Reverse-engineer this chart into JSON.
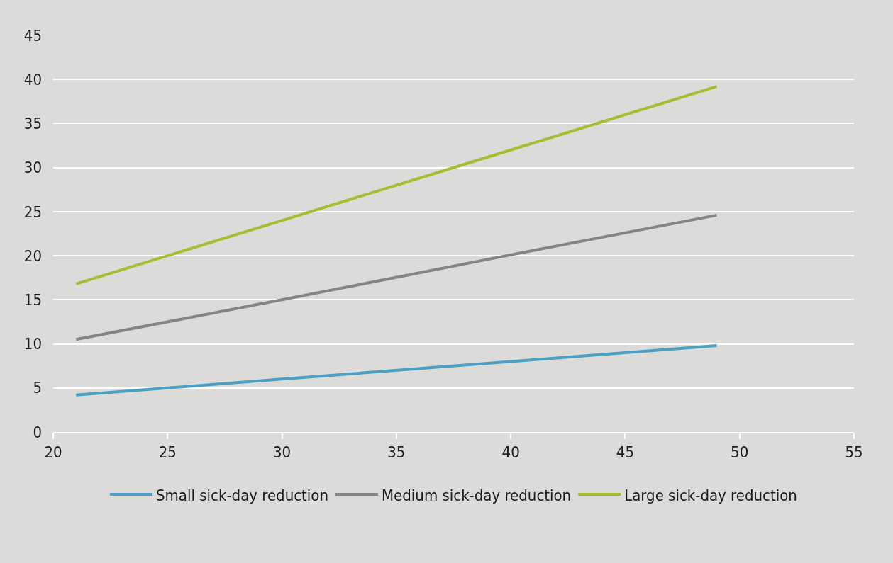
{
  "chart_data": {
    "type": "line",
    "x": [
      21,
      30,
      40,
      49
    ],
    "series": [
      {
        "name": "Small sick-day reduction",
        "color": "#4a9fc4",
        "values": [
          4.2,
          6.0,
          8.0,
          9.8
        ]
      },
      {
        "name": "Medium sick-day reduction",
        "color": "#858388",
        "values": [
          10.5,
          15.0,
          20.1,
          24.6
        ]
      },
      {
        "name": "Large sick-day reduction",
        "color": "#a6bd2f",
        "values": [
          16.8,
          24.0,
          32.0,
          39.2
        ]
      }
    ],
    "xlim": [
      20,
      55
    ],
    "xticks": [
      20,
      25,
      30,
      35,
      40,
      45,
      50,
      55
    ],
    "ylim": [
      0,
      45
    ],
    "yticks": [
      0,
      5,
      10,
      15,
      20,
      25,
      30,
      35,
      40,
      45
    ],
    "grid": "y",
    "legend": "bottom",
    "marker": "none",
    "line_style": "solid"
  }
}
